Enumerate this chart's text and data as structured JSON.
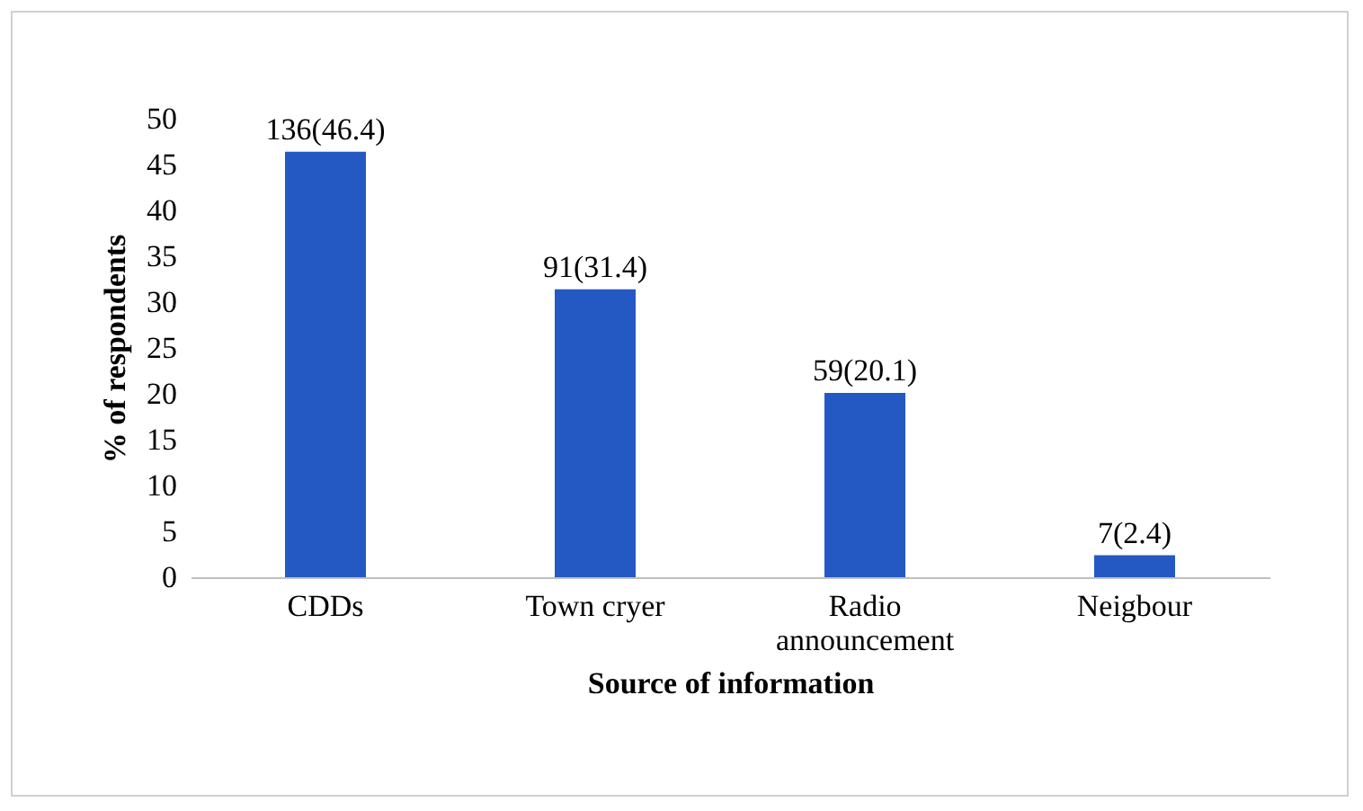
{
  "chart_data": {
    "type": "bar",
    "xlabel": "Source of information",
    "ylabel": "% of respondents",
    "categories": [
      "CDDs",
      "Town cryer",
      "Radio announcement",
      "Neigbour"
    ],
    "values": [
      46.4,
      31.4,
      20.1,
      2.4
    ],
    "value_labels": [
      "136(46.4)",
      "91(31.4)",
      "59(20.1)",
      "7(2.4)"
    ],
    "color": "#2459c4",
    "ylim": [
      0,
      50
    ],
    "yticks": [
      0,
      5,
      10,
      15,
      20,
      25,
      30,
      35,
      40,
      45,
      50
    ],
    "grid": false
  }
}
